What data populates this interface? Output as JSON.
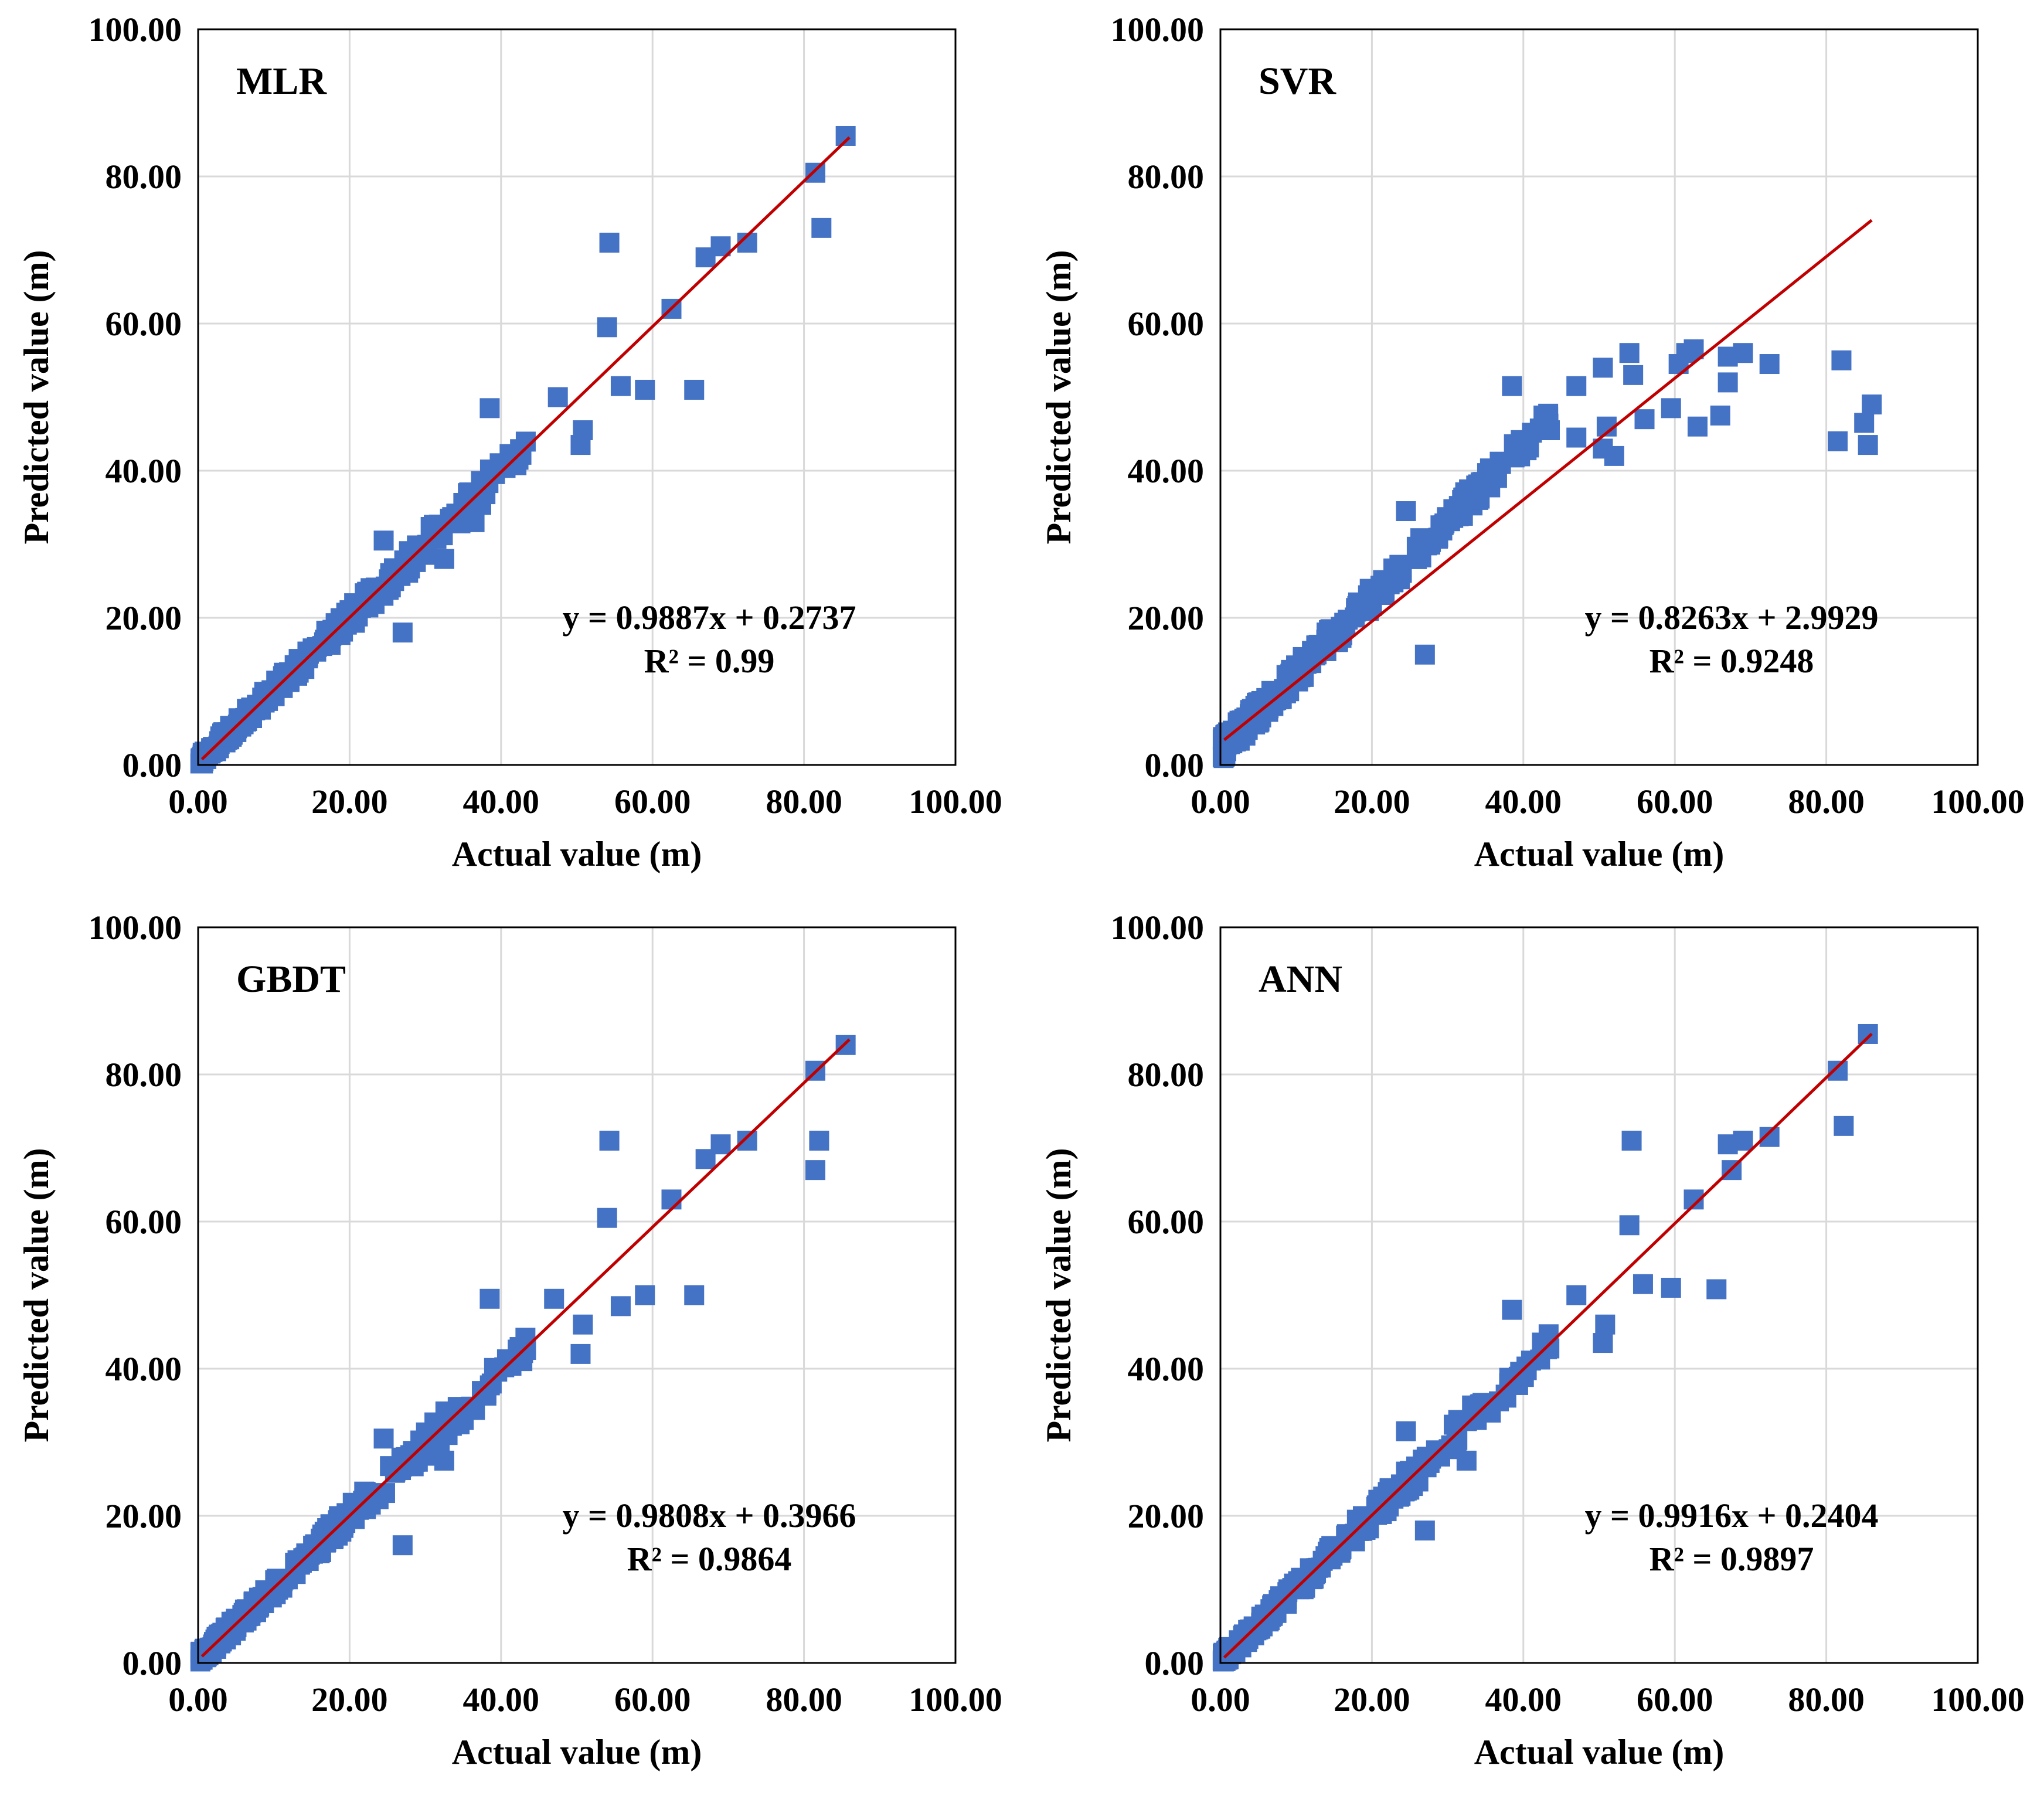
{
  "chart_data": [
    {
      "type": "scatter",
      "title": "MLR",
      "xlabel": "Actual value (m)",
      "ylabel": "Predicted value (m)",
      "xlim": [
        0,
        100
      ],
      "ylim": [
        0,
        100
      ],
      "xticks": [
        "0.00",
        "20.00",
        "40.00",
        "60.00",
        "80.00",
        "100.00"
      ],
      "yticks": [
        "0.00",
        "20.00",
        "40.00",
        "60.00",
        "80.00",
        "100.00"
      ],
      "grid": true,
      "marker_color": "#4472C4",
      "line_color": "#C00000",
      "fit": {
        "slope": 0.9887,
        "intercept": 0.2737,
        "x_range": [
          0.5,
          86
        ]
      },
      "equation": "y = 0.9887x + 0.2737",
      "r2": "R² = 0.99",
      "outliers": [
        [
          27.0,
          18.0
        ],
        [
          54.3,
          71.0
        ],
        [
          55.8,
          51.5
        ],
        [
          59.0,
          51.0
        ],
        [
          65.5,
          51.0
        ],
        [
          82.3,
          73.0
        ],
        [
          38.5,
          48.5
        ],
        [
          24.5,
          30.5
        ],
        [
          32.5,
          28.0
        ],
        [
          50.5,
          43.5
        ],
        [
          50.8,
          45.5
        ],
        [
          54.0,
          59.5
        ],
        [
          81.5,
          80.5
        ],
        [
          85.5,
          85.5
        ],
        [
          67.0,
          69.0
        ],
        [
          72.5,
          71.0
        ],
        [
          62.5,
          62.0
        ],
        [
          69.0,
          70.5
        ],
        [
          47.5,
          50.0
        ],
        [
          36.5,
          33.0
        ]
      ]
    },
    {
      "type": "scatter",
      "title": "SVR",
      "xlabel": "Actual value (m)",
      "ylabel": "Predicted value (m)",
      "xlim": [
        0,
        100
      ],
      "ylim": [
        0,
        100
      ],
      "xticks": [
        "0.00",
        "20.00",
        "40.00",
        "60.00",
        "80.00",
        "100.00"
      ],
      "yticks": [
        "0.00",
        "20.00",
        "40.00",
        "60.00",
        "80.00",
        "100.00"
      ],
      "grid": true,
      "marker_color": "#4472C4",
      "line_color": "#C00000",
      "fit": {
        "slope": 0.8263,
        "intercept": 2.9929,
        "x_range": [
          0.5,
          86
        ]
      },
      "equation": "y = 0.8263x + 2.9929",
      "r2": "R² = 0.9248",
      "outliers": [
        [
          38.5,
          51.5
        ],
        [
          47.0,
          51.5
        ],
        [
          50.5,
          54.0
        ],
        [
          54.0,
          56.0
        ],
        [
          54.5,
          53.0
        ],
        [
          60.5,
          54.5
        ],
        [
          61.5,
          56.0
        ],
        [
          62.5,
          56.5
        ],
        [
          67.0,
          55.5
        ],
        [
          69.0,
          56.0
        ],
        [
          72.5,
          54.5
        ],
        [
          82.0,
          55.0
        ],
        [
          81.5,
          44.0
        ],
        [
          85.0,
          46.5
        ],
        [
          85.5,
          43.5
        ],
        [
          86.0,
          49.0
        ],
        [
          63.0,
          46.0
        ],
        [
          66.0,
          47.5
        ],
        [
          59.5,
          48.5
        ],
        [
          56.0,
          47.0
        ],
        [
          51.0,
          46.0
        ],
        [
          50.5,
          43.0
        ],
        [
          47.0,
          44.5
        ],
        [
          27.0,
          15.0
        ],
        [
          24.5,
          34.5
        ],
        [
          43.5,
          45.5
        ],
        [
          67.0,
          52.0
        ],
        [
          52.0,
          42.0
        ]
      ]
    },
    {
      "type": "scatter",
      "title": "GBDT",
      "xlabel": "Actual value (m)",
      "ylabel": "Predicted value (m)",
      "xlim": [
        0,
        100
      ],
      "ylim": [
        0,
        100
      ],
      "xticks": [
        "0.00",
        "20.00",
        "40.00",
        "60.00",
        "80.00",
        "100.00"
      ],
      "yticks": [
        "0.00",
        "20.00",
        "40.00",
        "60.00",
        "80.00",
        "100.00"
      ],
      "grid": true,
      "marker_color": "#4472C4",
      "line_color": "#C00000",
      "fit": {
        "slope": 0.9808,
        "intercept": 0.3966,
        "x_range": [
          0.5,
          86
        ]
      },
      "equation": "y = 0.9808x + 0.3966",
      "r2": "R² = 0.9864",
      "outliers": [
        [
          27.0,
          16.0
        ],
        [
          54.3,
          71.0
        ],
        [
          55.8,
          48.5
        ],
        [
          59.0,
          50.0
        ],
        [
          65.5,
          50.0
        ],
        [
          82.0,
          71.0
        ],
        [
          81.5,
          67.0
        ],
        [
          38.5,
          49.5
        ],
        [
          24.5,
          30.5
        ],
        [
          32.5,
          27.5
        ],
        [
          50.5,
          42.0
        ],
        [
          50.8,
          46.0
        ],
        [
          54.0,
          60.5
        ],
        [
          81.5,
          80.5
        ],
        [
          85.5,
          84.0
        ],
        [
          67.0,
          68.5
        ],
        [
          72.5,
          71.0
        ],
        [
          62.5,
          63.0
        ],
        [
          69.0,
          70.5
        ],
        [
          47.0,
          49.5
        ]
      ]
    },
    {
      "type": "scatter",
      "title": "ANN",
      "xlabel": "Actual value (m)",
      "ylabel": "Predicted value (m)",
      "xlim": [
        0,
        100
      ],
      "ylim": [
        0,
        100
      ],
      "xticks": [
        "0.00",
        "20.00",
        "40.00",
        "60.00",
        "80.00",
        "100.00"
      ],
      "yticks": [
        "0.00",
        "20.00",
        "40.00",
        "60.00",
        "80.00",
        "100.00"
      ],
      "grid": true,
      "marker_color": "#4472C4",
      "line_color": "#C00000",
      "fit": {
        "slope": 0.9916,
        "intercept": 0.2404,
        "x_range": [
          0.5,
          86
        ]
      },
      "equation": "y = 0.9916x + 0.2404",
      "r2": "R² = 0.9897",
      "outliers": [
        [
          27.0,
          18.0
        ],
        [
          54.3,
          71.0
        ],
        [
          55.8,
          51.5
        ],
        [
          59.5,
          51.0
        ],
        [
          65.5,
          50.8
        ],
        [
          82.3,
          73.0
        ],
        [
          38.5,
          48.0
        ],
        [
          24.5,
          31.5
        ],
        [
          32.5,
          27.5
        ],
        [
          50.5,
          43.5
        ],
        [
          50.8,
          46.0
        ],
        [
          54.0,
          59.5
        ],
        [
          81.5,
          80.5
        ],
        [
          85.5,
          85.5
        ],
        [
          67.0,
          70.5
        ],
        [
          72.5,
          71.5
        ],
        [
          62.5,
          63.0
        ],
        [
          69.0,
          71.0
        ],
        [
          47.0,
          50.0
        ],
        [
          67.5,
          67.0
        ]
      ]
    }
  ]
}
